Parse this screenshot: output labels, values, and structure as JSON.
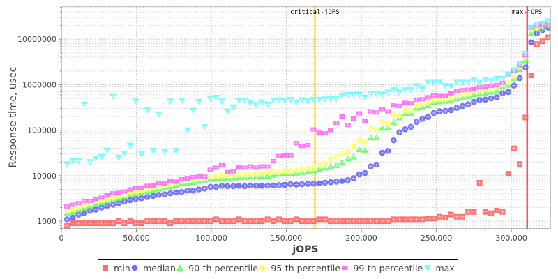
{
  "chart_data": {
    "type": "scatter",
    "title": "",
    "xlabel": "jOPS",
    "ylabel": "Response time, usec",
    "xlim": [
      0,
      326000
    ],
    "ylim": [
      680,
      53000000
    ],
    "yscale": "log",
    "grid": true,
    "legend_position": "bottom",
    "x_ticks": [
      {
        "value": 0,
        "label": "0"
      },
      {
        "value": 50000,
        "label": "50,000"
      },
      {
        "value": 100000,
        "label": "100,000"
      },
      {
        "value": 150000,
        "label": "150,000"
      },
      {
        "value": 200000,
        "label": "200,000"
      },
      {
        "value": 250000,
        "label": "250,000"
      },
      {
        "value": 300000,
        "label": "300,000"
      }
    ],
    "y_ticks": [
      {
        "value": 1000,
        "label": "1000"
      },
      {
        "value": 10000,
        "label": "10000"
      },
      {
        "value": 100000,
        "label": "100000"
      },
      {
        "value": 1000000,
        "label": "1000000"
      },
      {
        "value": 10000000,
        "label": "10000000"
      }
    ],
    "annotations": [
      {
        "label": "critical-jOPS",
        "x": 169000,
        "color": "#ffc800"
      },
      {
        "label": "max-jOPS",
        "x": 310500,
        "color": "#ff0000"
      }
    ],
    "x": [
      3820,
      7640,
      11460,
      15280,
      19100,
      22920,
      26740,
      30560,
      34380,
      38200,
      42020,
      45840,
      49660,
      53480,
      57300,
      61120,
      64940,
      68760,
      72580,
      76400,
      80220,
      84040,
      87860,
      91680,
      95500,
      99320,
      103140,
      106960,
      110780,
      114600,
      118420,
      122240,
      126060,
      129880,
      133700,
      137520,
      141340,
      145160,
      148980,
      152800,
      156620,
      160440,
      164260,
      168080,
      171900,
      175720,
      179540,
      183360,
      187180,
      191000,
      194820,
      198640,
      202460,
      206280,
      210100,
      213920,
      217740,
      221560,
      225380,
      229200,
      233020,
      236840,
      240660,
      244480,
      248300,
      252120,
      255940,
      259760,
      263580,
      267400,
      271220,
      275040,
      278860,
      282680,
      286500,
      290320,
      294140,
      297960,
      301780,
      305600,
      309420,
      313240,
      317060,
      320880,
      324700
    ],
    "series": [
      {
        "name": "min",
        "color": "#ff5555",
        "shape": "square",
        "values": [
          800,
          900,
          900,
          900,
          900,
          900,
          900,
          900,
          900,
          1000,
          900,
          1000,
          900,
          900,
          1000,
          1000,
          1000,
          1000,
          900,
          1000,
          1000,
          1000,
          1000,
          1000,
          1000,
          1000,
          1100,
          1000,
          1000,
          1000,
          1100,
          1000,
          1000,
          1000,
          1000,
          1100,
          1000,
          1100,
          1000,
          1000,
          1100,
          1000,
          1000,
          1000,
          1100,
          1100,
          1000,
          1000,
          1000,
          1000,
          1000,
          1000,
          1000,
          1000,
          1000,
          1000,
          1000,
          1100,
          1100,
          1100,
          1100,
          1100,
          1100,
          1150,
          1150,
          1250,
          1200,
          1400,
          1250,
          1250,
          1600,
          1600,
          7000,
          1600,
          1500,
          1700,
          1600,
          11000,
          40000,
          18000,
          190000,
          1600000,
          7800000,
          9000000,
          11000000
        ]
      },
      {
        "name": "median",
        "color": "#5555ff",
        "shape": "circle",
        "values": [
          1100,
          1200,
          1400,
          1500,
          1700,
          1800,
          2000,
          2200,
          2300,
          2500,
          2700,
          2900,
          3100,
          3200,
          3400,
          3600,
          3800,
          3900,
          4100,
          4300,
          4400,
          4700,
          4700,
          5000,
          5200,
          5700,
          5700,
          6000,
          5900,
          5900,
          6000,
          5900,
          6100,
          6000,
          6000,
          6100,
          6100,
          6200,
          6300,
          6500,
          6400,
          6500,
          6600,
          6700,
          6800,
          7000,
          7200,
          7400,
          7600,
          8000,
          8800,
          10700,
          11500,
          16000,
          17500,
          32000,
          35000,
          60000,
          90000,
          105000,
          118000,
          152000,
          177000,
          195000,
          240000,
          260000,
          266000,
          275000,
          310000,
          340000,
          370000,
          420000,
          460000,
          470000,
          500000,
          530000,
          650000,
          690000,
          960000,
          1400000,
          2400000,
          8500000,
          13500000,
          16000000,
          18000000
        ]
      },
      {
        "name": "90-th percentile",
        "color": "#55ff55",
        "shape": "triangle-up",
        "values": [
          1500,
          1600,
          1800,
          2000,
          2200,
          2400,
          2600,
          2800,
          3000,
          3200,
          3500,
          3800,
          4100,
          4300,
          4600,
          4800,
          5200,
          5500,
          5800,
          6300,
          6800,
          7000,
          7200,
          7600,
          7800,
          8500,
          8800,
          9000,
          9000,
          9100,
          9200,
          9300,
          9500,
          9600,
          9500,
          9800,
          10500,
          11000,
          11300,
          11300,
          11500,
          12000,
          12500,
          13000,
          14000,
          15000,
          16000,
          17000,
          20000,
          24000,
          26000,
          38000,
          37000,
          69000,
          69000,
          112000,
          115000,
          150000,
          190000,
          235000,
          240000,
          310000,
          330000,
          350000,
          420000,
          430000,
          440000,
          450000,
          500000,
          520000,
          560000,
          620000,
          640000,
          640000,
          700000,
          720000,
          900000,
          1000000,
          1400000,
          2200000,
          3500000,
          13500000,
          17000000,
          19000000,
          22000000
        ]
      },
      {
        "name": "95-th percentile",
        "color": "#ffff55",
        "shape": "diamond",
        "values": [
          1700,
          1850,
          2050,
          2250,
          2500,
          2700,
          2900,
          3100,
          3300,
          3600,
          3900,
          4200,
          4500,
          4800,
          5100,
          5400,
          5800,
          6200,
          6600,
          7100,
          7600,
          8000,
          8300,
          8600,
          9000,
          9500,
          9800,
          10000,
          10200,
          10300,
          10500,
          10800,
          10800,
          11000,
          11000,
          12000,
          12500,
          12000,
          12500,
          12500,
          13000,
          14000,
          14500,
          15000,
          17000,
          19000,
          23000,
          27000,
          30000,
          34000,
          44000,
          60000,
          54000,
          112000,
          100000,
          152000,
          140000,
          220000,
          210000,
          270000,
          270000,
          350000,
          380000,
          410000,
          470000,
          480000,
          490000,
          500000,
          600000,
          620000,
          650000,
          720000,
          760000,
          800000,
          830000,
          880000,
          1070000,
          1100000,
          1500000,
          2500000,
          4000000,
          16500000,
          18000000,
          20000000,
          23000000
        ]
      },
      {
        "name": "99-th percentile",
        "color": "#ff55ff",
        "shape": "rect",
        "values": [
          2100,
          2300,
          2500,
          2800,
          2800,
          3100,
          3300,
          3700,
          4100,
          4200,
          4500,
          5000,
          5300,
          5300,
          6000,
          6100,
          6900,
          6700,
          7600,
          7400,
          8300,
          8600,
          9300,
          9700,
          9500,
          13500,
          15000,
          17000,
          12000,
          12500,
          15500,
          15000,
          16000,
          15000,
          16000,
          16000,
          21000,
          27000,
          28000,
          28000,
          52000,
          45000,
          47000,
          104000,
          88000,
          86000,
          100000,
          145000,
          200000,
          130000,
          180000,
          235000,
          160000,
          260000,
          245000,
          290000,
          260000,
          360000,
          340000,
          400000,
          390000,
          470000,
          480000,
          530000,
          580000,
          570000,
          570000,
          650000,
          720000,
          760000,
          780000,
          800000,
          880000,
          900000,
          950000,
          980000,
          1100000,
          1700000,
          2000000,
          2700000,
          4400000,
          18000000,
          20000000,
          21000000,
          23000000
        ]
      },
      {
        "name": "max",
        "color": "#55ffff",
        "shape": "triangle-down",
        "values": [
          18000,
          21000,
          21000,
          370000,
          20000,
          24000,
          26000,
          36000,
          550000,
          25000,
          31000,
          46000,
          430000,
          30000,
          280000,
          35000,
          225000,
          33000,
          430000,
          35000,
          450000,
          100000,
          270000,
          420000,
          117000,
          500000,
          520000,
          430000,
          260000,
          320000,
          450000,
          450000,
          400000,
          360000,
          410000,
          370000,
          450000,
          460000,
          450000,
          470000,
          410000,
          460000,
          430000,
          470000,
          470000,
          480000,
          480000,
          490000,
          580000,
          600000,
          600000,
          600000,
          520000,
          640000,
          640000,
          600000,
          680000,
          760000,
          680000,
          760000,
          760000,
          930000,
          800000,
          1150000,
          1150000,
          1150000,
          950000,
          930000,
          1150000,
          1150000,
          1150000,
          1250000,
          1150000,
          1300000,
          1200000,
          1350000,
          1350000,
          1700000,
          2100000,
          2900000,
          4800000,
          18000000,
          21000000,
          22000000,
          25000000
        ]
      }
    ]
  }
}
